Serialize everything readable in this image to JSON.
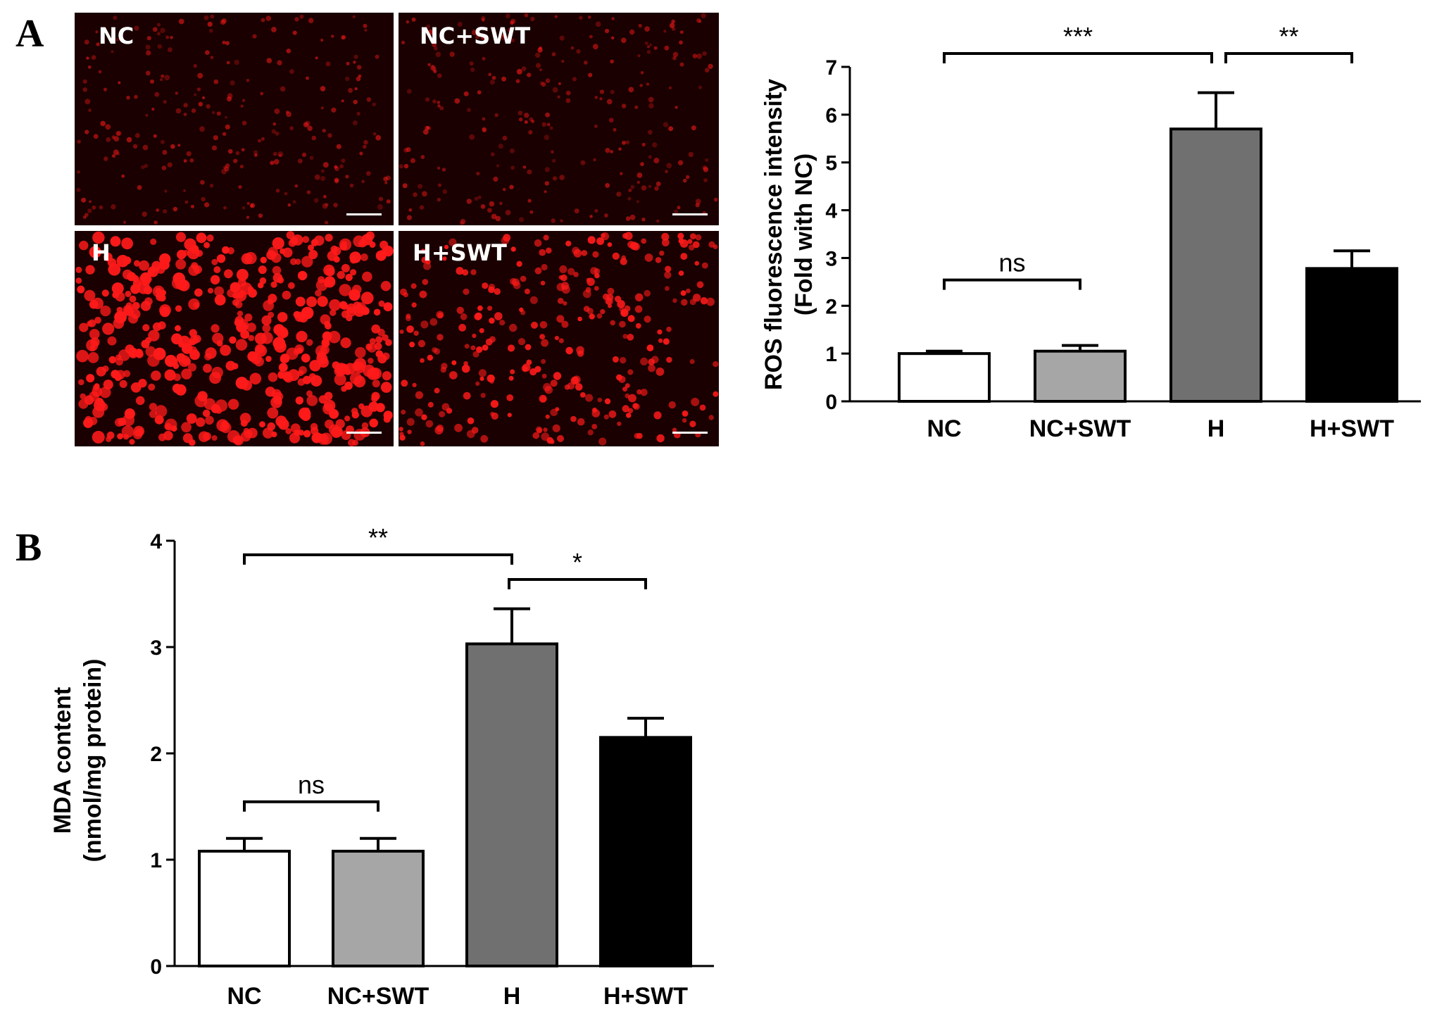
{
  "panels": {
    "a_letter": "A",
    "b_letter": "B"
  },
  "micrographs": [
    {
      "label": "NC",
      "intensity": "low"
    },
    {
      "label": "NC+SWT",
      "intensity": "low"
    },
    {
      "label": "H",
      "intensity": "high"
    },
    {
      "label": "H+SWT",
      "intensity": "medium"
    }
  ],
  "colors": {
    "NC": "#ffffff",
    "NC+SWT": "#a6a6a6",
    "H": "#707070",
    "H+SWT": "#000000",
    "micrograph_background": "#1a0000",
    "micrograph_cells": "#ff1a1a"
  },
  "chart_data": [
    {
      "id": "ros",
      "type": "bar",
      "categories": [
        "NC",
        "NC+SWT",
        "H",
        "H+SWT"
      ],
      "values": [
        1.0,
        1.05,
        5.7,
        2.78
      ],
      "errors": [
        0.05,
        0.12,
        0.76,
        0.37
      ],
      "ylabel_line1": "ROS fluorescence intensity",
      "ylabel_line2": "(Fold with NC)",
      "ylim": [
        0,
        7
      ],
      "yticks": [
        0,
        1,
        2,
        3,
        4,
        5,
        6,
        7
      ],
      "significance": [
        {
          "from": 0,
          "to": 2,
          "label": "***"
        },
        {
          "from": 2,
          "to": 3,
          "label": "**"
        },
        {
          "from": 0,
          "to": 1,
          "label": "ns"
        }
      ]
    },
    {
      "id": "mda",
      "type": "bar",
      "categories": [
        "NC",
        "NC+SWT",
        "H",
        "H+SWT"
      ],
      "values": [
        1.08,
        1.08,
        3.03,
        2.15
      ],
      "errors": [
        0.12,
        0.12,
        0.33,
        0.18
      ],
      "ylabel_line1": "MDA content",
      "ylabel_line2": "(nmol/mg protein)",
      "ylim": [
        0,
        4
      ],
      "yticks": [
        0,
        1,
        2,
        3,
        4
      ],
      "significance": [
        {
          "from": 0,
          "to": 2,
          "label": "**"
        },
        {
          "from": 2,
          "to": 3,
          "label": "*"
        },
        {
          "from": 0,
          "to": 1,
          "label": "ns"
        }
      ]
    }
  ]
}
